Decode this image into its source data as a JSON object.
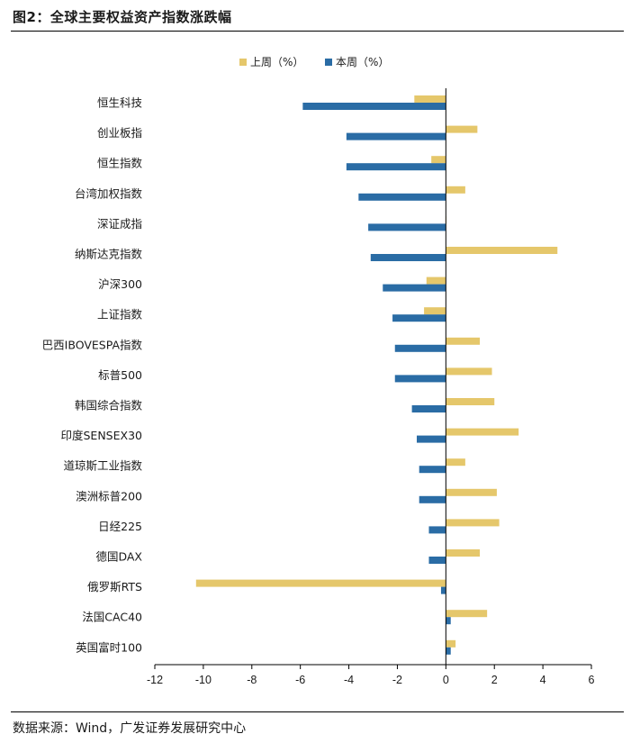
{
  "title": "图2：全球主要权益资产指数涨跌幅",
  "source": {
    "label": "数据来源：",
    "text": "Wind，广发证券发展研究中心"
  },
  "colors": {
    "last_week": "#E5C76B",
    "this_week": "#2A6CA5",
    "axis": "#000000"
  },
  "chart_data": {
    "type": "bar",
    "orientation": "horizontal",
    "title": "图2：全球主要权益资产指数涨跌幅",
    "xlabel": "",
    "ylabel": "",
    "xlim": [
      -12,
      6
    ],
    "xticks": [
      -12,
      -10,
      -8,
      -6,
      -4,
      -2,
      0,
      2,
      4,
      6
    ],
    "legend_position": "top-center",
    "categories": [
      "恒生科技",
      "创业板指",
      "恒生指数",
      "台湾加权指数",
      "深证成指",
      "纳斯达克指数",
      "沪深300",
      "上证指数",
      "巴西IBOVESPA指数",
      "标普500",
      "韩国综合指数",
      "印度SENSEX30",
      "道琼斯工业指数",
      "澳洲标普200",
      "日经225",
      "德国DAX",
      "俄罗斯RTS",
      "法国CAC40",
      "英国富时100"
    ],
    "series": [
      {
        "name": "上周（%）",
        "values": [
          -1.3,
          1.3,
          -0.6,
          0.8,
          0.0,
          4.6,
          -0.8,
          -0.9,
          1.4,
          1.9,
          2.0,
          3.0,
          0.8,
          2.1,
          2.2,
          1.4,
          -10.3,
          1.7,
          0.4
        ]
      },
      {
        "name": "本周（%）",
        "values": [
          -5.9,
          -4.1,
          -4.1,
          -3.6,
          -3.2,
          -3.1,
          -2.6,
          -2.2,
          -2.1,
          -2.1,
          -1.4,
          -1.2,
          -1.1,
          -1.1,
          -0.7,
          -0.7,
          -0.2,
          0.2,
          0.2
        ]
      }
    ]
  }
}
